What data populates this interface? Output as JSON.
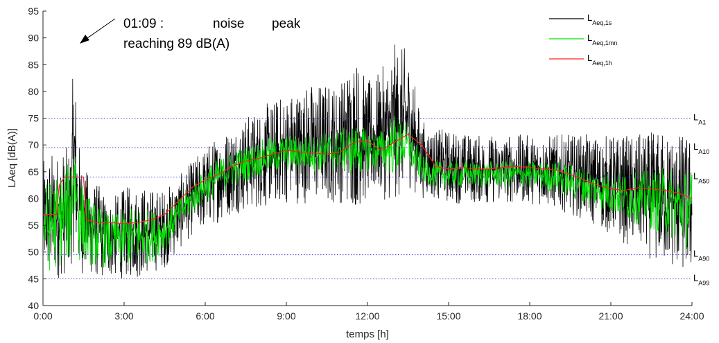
{
  "chart_data": {
    "type": "line",
    "xlabel": "temps [h]",
    "ylabel": "LAeq [dB(A)]",
    "xlim": [
      0,
      24
    ],
    "ylim": [
      40,
      95
    ],
    "x_ticks": [
      0,
      3,
      6,
      9,
      12,
      15,
      18,
      21,
      24
    ],
    "x_tick_labels": [
      "0:00",
      "3:00",
      "6:00",
      "9:00",
      "12:00",
      "15:00",
      "18:00",
      "21:00",
      "24:00"
    ],
    "y_ticks": [
      40,
      45,
      50,
      55,
      60,
      65,
      70,
      75,
      80,
      85,
      90,
      95
    ],
    "y_tick_labels": [
      "40",
      "45",
      "50",
      "55",
      "60",
      "65",
      "70",
      "75",
      "80",
      "85",
      "90",
      "95"
    ],
    "grid": false,
    "legend_position": "top-right",
    "series": [
      {
        "legend_main": "L",
        "legend_sub": "Aeq,1s",
        "color": "#000000",
        "envelope_hours": [
          0,
          0.3,
          0.6,
          1.0,
          1.15,
          1.3,
          1.5,
          2.0,
          2.5,
          3.0,
          3.5,
          4.0,
          4.5,
          5.0,
          5.5,
          6.0,
          7.0,
          8.0,
          9.0,
          10.0,
          11.0,
          11.5,
          12.0,
          12.5,
          13.0,
          13.5,
          14.0,
          14.5,
          15.0,
          16.0,
          17.0,
          18.0,
          19.0,
          20.0,
          21.0,
          22.0,
          23.0,
          24.0
        ],
        "envelope_min": [
          45,
          44,
          45,
          46,
          50,
          45,
          46,
          45,
          45,
          45,
          45,
          46,
          47,
          50,
          53,
          54,
          57,
          58,
          59,
          59,
          59,
          58,
          59,
          60,
          59,
          62,
          60,
          60,
          59,
          59,
          59,
          59,
          58,
          56,
          53,
          50,
          47,
          45
        ],
        "envelope_max": [
          67,
          69,
          69,
          70,
          89,
          72,
          66,
          63,
          60,
          62,
          63,
          62,
          62,
          64,
          67,
          70,
          74,
          77,
          80,
          82,
          82,
          88,
          82,
          84,
          89,
          88,
          75,
          73,
          73,
          72,
          72,
          72,
          72,
          72,
          72,
          72,
          73,
          72
        ]
      },
      {
        "legend_main": "L",
        "legend_sub": "Aeq,1mn",
        "color": "#00e000",
        "envelope_hours": [
          0,
          0.3,
          0.6,
          1.0,
          1.15,
          1.3,
          1.5,
          2.0,
          2.5,
          3.0,
          3.5,
          4.0,
          4.5,
          5.0,
          5.5,
          6.0,
          7.0,
          8.0,
          9.0,
          10.0,
          11.0,
          11.5,
          12.0,
          12.5,
          13.0,
          13.5,
          14.0,
          14.5,
          15.0,
          16.0,
          17.0,
          18.0,
          19.0,
          20.0,
          21.0,
          22.0,
          23.0,
          24.0
        ],
        "envelope_min": [
          47,
          46,
          47,
          48,
          55,
          48,
          48,
          47,
          47,
          47,
          47,
          48,
          50,
          54,
          57,
          59,
          62,
          64,
          65,
          65,
          65,
          64,
          65,
          65,
          64,
          66,
          63,
          62,
          62,
          62,
          62,
          62,
          61,
          59,
          57,
          55,
          53,
          50
        ],
        "envelope_max": [
          63,
          64,
          65,
          67,
          77,
          67,
          62,
          59,
          57,
          58,
          59,
          58,
          58,
          60,
          63,
          66,
          69,
          71,
          72,
          72,
          73,
          74,
          73,
          73,
          76,
          74,
          68,
          67,
          67,
          67,
          67,
          67,
          67,
          66,
          65,
          65,
          66,
          66
        ]
      },
      {
        "legend_main": "L",
        "legend_sub": "Aeq,1h",
        "color": "#ff2020",
        "x": [
          0.0,
          0.5,
          0.6,
          0.8,
          1.0,
          1.5,
          1.6,
          2.0,
          2.5,
          3.0,
          3.5,
          4.0,
          4.5,
          5.0,
          5.5,
          6.0,
          6.5,
          7.0,
          7.5,
          8.0,
          8.5,
          9.0,
          9.5,
          10.0,
          10.5,
          11.0,
          11.5,
          12.0,
          12.5,
          13.0,
          13.5,
          14.0,
          14.4,
          14.5,
          15.0,
          15.5,
          16.0,
          16.5,
          17.0,
          17.5,
          18.0,
          18.5,
          19.0,
          19.5,
          20.0,
          20.5,
          21.0,
          21.5,
          22.0,
          22.5,
          23.0,
          23.5,
          24.0
        ],
        "values": [
          57,
          57,
          62.5,
          64,
          64,
          64,
          56,
          55.5,
          55.5,
          55.3,
          55.5,
          56,
          57,
          59.5,
          62,
          63.5,
          64.5,
          66,
          67,
          67.5,
          68.3,
          69,
          68.7,
          68.5,
          68.3,
          68.7,
          70.5,
          70.8,
          69,
          70.5,
          72,
          70,
          67,
          66,
          65.5,
          65.8,
          65.5,
          65.5,
          65.8,
          66,
          65.8,
          65.5,
          65.3,
          64.5,
          63.5,
          62.5,
          61.8,
          61.5,
          62,
          61.8,
          61.5,
          61,
          60
        ]
      }
    ],
    "reference_lines": [
      {
        "main": "L",
        "sub": "A1",
        "value": 75
      },
      {
        "main": "L",
        "sub": "A10",
        "value": 69.5
      },
      {
        "main": "L",
        "sub": "A50",
        "value": 64
      },
      {
        "main": "L",
        "sub": "A90",
        "value": 49.5
      },
      {
        "main": "L",
        "sub": "A99",
        "value": 45
      }
    ],
    "reference_line_color": "#3b3bd6",
    "annotation": {
      "line1": [
        "01:09 :",
        "noise",
        "peak"
      ],
      "line2": "reaching 89 dB(A)",
      "target_hours": 1.15,
      "target_value": 89
    }
  }
}
